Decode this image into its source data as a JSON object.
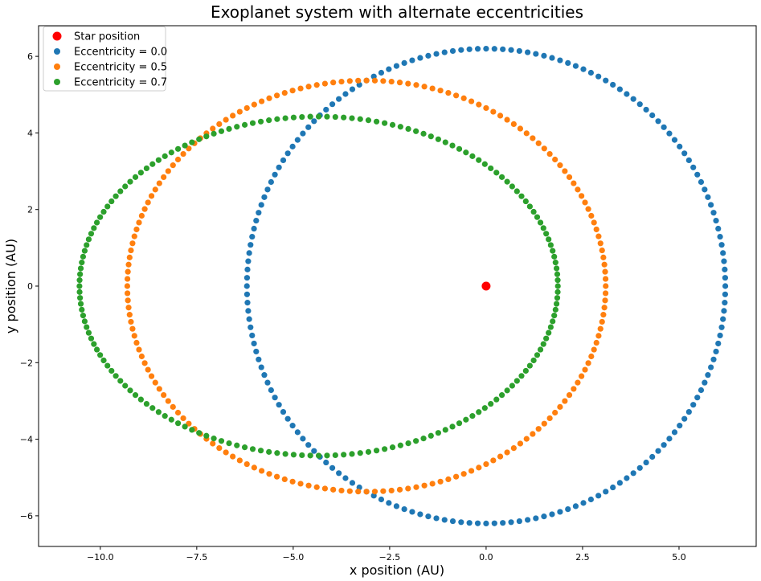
{
  "chart_data": {
    "type": "scatter",
    "title": "Exoplanet system with alternate eccentricities",
    "xlabel": "x position (AU)",
    "ylabel": "y position (AU)",
    "xlim": [
      -11.6,
      7.0
    ],
    "ylim": [
      -6.8,
      6.8
    ],
    "x_ticks": [
      -10.0,
      -7.5,
      -5.0,
      -2.5,
      0.0,
      2.5,
      5.0
    ],
    "x_tick_labels": [
      "−10.0",
      "−7.5",
      "−5.0",
      "−2.5",
      "0.0",
      "2.5",
      "5.0"
    ],
    "y_ticks": [
      -6,
      -4,
      -2,
      0,
      2,
      4,
      6
    ],
    "y_tick_labels": [
      "−6",
      "−4",
      "−2",
      "0",
      "2",
      "4",
      "6"
    ],
    "grid": false,
    "legend_position": "top-left",
    "star": {
      "name": "Star position",
      "x": 0,
      "y": 0,
      "color": "#ff0000"
    },
    "series": [
      {
        "name": "Eccentricity = 0.0",
        "color": "#1f77b4",
        "semi_major_axis": 6.2,
        "eccentricity": 0.0,
        "center_x": 0.0,
        "points": 180
      },
      {
        "name": "Eccentricity = 0.5",
        "color": "#ff7f0e",
        "semi_major_axis": 6.2,
        "eccentricity": 0.5,
        "center_x": -3.1,
        "points": 180
      },
      {
        "name": "Eccentricity = 0.7",
        "color": "#2ca02c",
        "semi_major_axis": 6.2,
        "eccentricity": 0.7,
        "center_x": -4.34,
        "points": 180
      }
    ]
  }
}
